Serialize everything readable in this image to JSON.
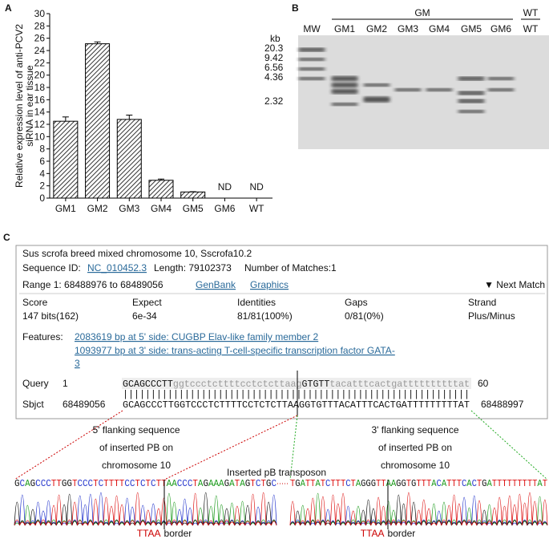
{
  "panels": [
    "A",
    "B",
    "C"
  ],
  "chart_data": {
    "type": "bar",
    "y_label": [
      "Relative expression level of anti-PCV2",
      "siRNA in ear tissue"
    ],
    "categories": [
      "GM1",
      "GM2",
      "GM3",
      "GM4",
      "GM5",
      "GM6",
      "WT"
    ],
    "values": [
      12.5,
      25.1,
      12.8,
      2.9,
      1.0,
      null,
      null
    ],
    "errors": [
      0.7,
      0.3,
      0.7,
      0.2,
      0.05,
      null,
      null
    ],
    "value_labels": [
      null,
      null,
      null,
      null,
      null,
      "ND",
      "ND"
    ],
    "ylim": [
      0,
      30
    ],
    "yticks": [
      0,
      2,
      4,
      6,
      8,
      10,
      12,
      14,
      16,
      18,
      20,
      22,
      24,
      26,
      28,
      30
    ],
    "color": "#555555"
  },
  "gel": {
    "group_labels": [
      "GM",
      "WT"
    ],
    "lanes": [
      "MW",
      "GM1",
      "GM2",
      "GM3",
      "GM4",
      "GM5",
      "GM6",
      "WT"
    ],
    "size_unit": "kb",
    "sizes": [
      "20.3",
      "9.42",
      "6.56",
      "4.36",
      "2.32"
    ]
  },
  "blast": {
    "title": "Sus scrofa breed mixed chromosome 10, Sscrofa10.2",
    "seq_id_label": "Sequence ID:",
    "seq_id": "NC_010452.3",
    "length": "Length: 79102373",
    "matches": "Number of Matches:1",
    "range": "Range 1: 68488976 to 68489056",
    "links": [
      "GenBank",
      "Graphics"
    ],
    "next": "▼ Next Match",
    "headers": [
      "Score",
      "Expect",
      "Identities",
      "Gaps",
      "Strand"
    ],
    "stats": [
      "147 bits(162)",
      "6e-34",
      "81/81(100%)",
      "0/81(0%)",
      "Plus/Minus"
    ],
    "features_label": "Features:",
    "features": [
      "2083619 bp at 5' side: CUGBP Elav-like family member 2",
      "1093977 bp at 3' side: trans-acting T-cell-specific transcription factor GATA-",
      "3"
    ],
    "query_label": "Query",
    "query_start": "1",
    "query_end": "60",
    "query_segments": [
      "GCAGCCCTT",
      "ggtccctcttttcctctctt",
      "aag",
      "GTGTT",
      "tacatttcactgattttttttttat"
    ],
    "match_line": "||||||||||||||||||||||||||||||||||||||||||||||||||||||||||||||",
    "sbjct_label": "Sbjct",
    "sbjct_start": "68489056",
    "sbjct_end": "68488997",
    "sbjct_seq": "GCAGCCCTTGGTCCCTCTTTTCCTCTCTTAAGGTGTTTACATTTCACTGATTTTTTTTTAT"
  },
  "flank": {
    "left": [
      "5' flanking sequence",
      "of inserted PB on",
      "chromosome 10"
    ],
    "right": [
      "3' flanking sequence",
      "of inserted PB on",
      "chromosome 10"
    ],
    "transposon": "Inserted pB transposon",
    "left_seq": "GCAGCCCTTGGTCCCTCTTTTCCTCTCTTAACCCTAGAAAGATAGTCTGC",
    "right_seq": "TGATTATCTTTCTAGGGTTAAGGTGTTTACATTTCACTGATTTTTTTTTAT",
    "borders": [
      {
        "code": "TTAA",
        "text": "border"
      },
      {
        "code": "TTAA",
        "text": "border"
      }
    ]
  }
}
